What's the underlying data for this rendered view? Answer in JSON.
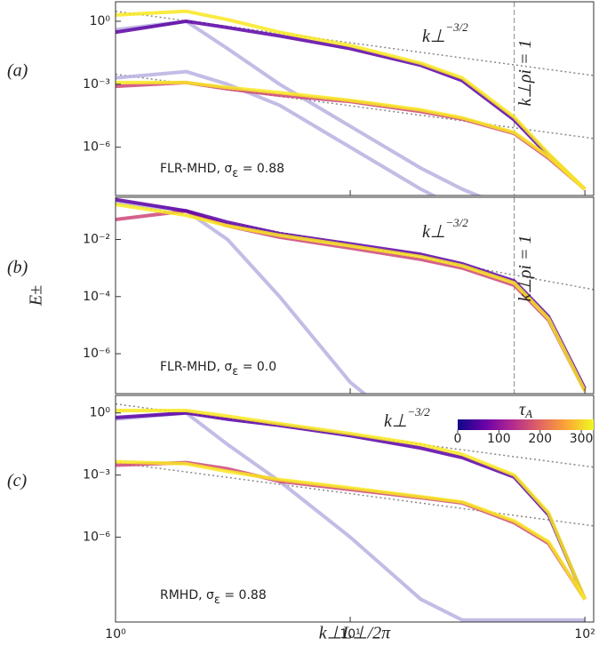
{
  "chart_data": [
    {
      "type": "line",
      "label": "(a)",
      "note": {
        "main": "FLR-MHD, σ",
        "sub": "ε",
        "tail": " = 0.88"
      },
      "slope": {
        "base": "k⊥",
        "sup": "−3/2"
      },
      "vline": {
        "value": 50,
        "label": "k⊥ρi = 1"
      },
      "ylim": [
        5e-09,
        8.5
      ],
      "yticks": [
        {
          "value": 1,
          "label": "10⁰"
        },
        {
          "value": 0.001,
          "label": "10⁻³"
        },
        {
          "value": 1e-06,
          "label": "10⁻⁶"
        }
      ],
      "x": [
        1,
        2,
        3,
        5,
        10,
        20,
        30,
        50,
        70,
        100
      ],
      "series": [
        {
          "color": "#b8b0e0",
          "values": [
            0.4,
            1,
            0.05,
            0.001,
            1e-05,
            1e-07,
            1e-08,
            1e-09,
            1e-09,
            1e-09
          ]
        },
        {
          "color": "#b8b0e0",
          "values": [
            0.002,
            0.004,
            0.001,
            0.0001,
            1e-06,
            1e-08,
            1e-09,
            1e-09,
            1e-09,
            1e-09
          ]
        },
        {
          "color": "#5c01a6",
          "values": [
            0.3,
            1,
            0.5,
            0.2,
            0.05,
            0.008,
            0.0015,
            2e-05,
            4e-07,
            1e-08
          ]
        },
        {
          "color": "#cc4778",
          "values": [
            0.0008,
            0.0012,
            0.0006,
            0.0003,
            0.00015,
            5e-05,
            2.2e-05,
            4.5e-06,
            3e-07,
            1e-08
          ]
        },
        {
          "color": "#f9e721",
          "values": [
            2,
            3,
            1.2,
            0.3,
            0.07,
            0.01,
            0.002,
            2.7e-05,
            5e-07,
            1e-08
          ]
        },
        {
          "color": "#f9e721",
          "values": [
            0.0012,
            0.0012,
            0.0007,
            0.0004,
            0.00017,
            6e-05,
            2.5e-05,
            5e-06,
            3.5e-07,
            1e-08
          ]
        }
      ],
      "refs": [
        {
          "x": [
            1,
            109
          ],
          "values": [
            3,
            0.0026
          ]
        },
        {
          "x": [
            1,
            109
          ],
          "values": [
            0.003,
            2.6e-06
          ]
        }
      ]
    },
    {
      "type": "line",
      "label": "(b)",
      "note": {
        "main": "FLR-MHD, σ",
        "sub": "ε",
        "tail": " = 0.0"
      },
      "slope": {
        "base": "k⊥",
        "sup": "−3/2"
      },
      "vline": {
        "value": 50,
        "label": "k⊥ρi = 1"
      },
      "ylabel": "E±",
      "ylim": [
        4e-08,
        0.3
      ],
      "yticks": [
        {
          "value": 0.01,
          "label": "10⁻²"
        },
        {
          "value": 0.0001,
          "label": "10⁻⁴"
        },
        {
          "value": 1e-06,
          "label": "10⁻⁶"
        }
      ],
      "x": [
        1,
        2,
        3,
        5,
        10,
        20,
        30,
        50,
        70,
        100
      ],
      "series": [
        {
          "color": "#b8b0e0",
          "values": [
            0.2,
            0.1,
            0.01,
            0.0001,
            1e-07,
            1e-09,
            1e-09,
            1e-09,
            1e-09,
            1e-09
          ]
        },
        {
          "color": "#cc4778",
          "values": [
            0.05,
            0.1,
            0.03,
            0.012,
            0.005,
            0.002,
            0.001,
            0.00025,
            1.5e-05,
            5e-08
          ]
        },
        {
          "color": "#5c01a6",
          "values": [
            0.25,
            0.1,
            0.04,
            0.016,
            0.007,
            0.003,
            0.0014,
            0.00035,
            2e-05,
            6e-08
          ]
        },
        {
          "color": "#f9e721",
          "values": [
            0.17,
            0.07,
            0.03,
            0.014,
            0.006,
            0.0025,
            0.0012,
            0.0003,
            1.7e-05,
            5e-08
          ]
        }
      ],
      "refs": [
        {
          "x": [
            1,
            109
          ],
          "values": [
            0.2,
            0.000176
          ]
        }
      ]
    },
    {
      "type": "line",
      "label": "(c)",
      "note": {
        "main": "RMHD, σ",
        "sub": "ε",
        "tail": " = 0.88"
      },
      "slope": {
        "base": "k⊥",
        "sup": "−3/2"
      },
      "xlabel": "k⊥L⊥/2π",
      "xlim": [
        1,
        109
      ],
      "xticks": [
        {
          "value": 1,
          "label": "10⁰"
        },
        {
          "value": 10,
          "label": "10¹"
        },
        {
          "value": 100,
          "label": "10²"
        }
      ],
      "ylim": [
        8e-11,
        7
      ],
      "yticks": [
        {
          "value": 1,
          "label": "10⁰"
        },
        {
          "value": 0.001,
          "label": "10⁻³"
        },
        {
          "value": 1e-06,
          "label": "10⁻⁶"
        }
      ],
      "x": [
        1,
        2,
        3,
        5,
        10,
        20,
        30,
        50,
        70,
        100
      ],
      "series": [
        {
          "color": "#b8b0e0",
          "values": [
            0.5,
            1,
            0.03,
            0.0005,
            1e-06,
            1e-09,
            1e-10,
            1e-10,
            1e-10,
            1e-10
          ]
        },
        {
          "color": "#5c01a6",
          "values": [
            0.6,
            1,
            0.5,
            0.25,
            0.08,
            0.02,
            0.007,
            0.0008,
            1.2e-05,
            1e-09
          ]
        },
        {
          "color": "#cc4778",
          "values": [
            0.003,
            0.004,
            0.002,
            0.0005,
            0.0002,
            8e-05,
            4.5e-05,
            5e-06,
            5e-07,
            1e-09
          ]
        },
        {
          "color": "#f9e721",
          "values": [
            1.3,
            1.3,
            0.7,
            0.3,
            0.1,
            0.03,
            0.01,
            0.001,
            1.5e-05,
            1e-09
          ]
        },
        {
          "color": "#f9e721",
          "values": [
            0.0044,
            0.0035,
            0.0015,
            0.0006,
            0.00024,
            9e-05,
            5e-05,
            6e-06,
            6e-07,
            1e-09
          ]
        }
      ],
      "refs": [
        {
          "x": [
            1,
            109
          ],
          "values": [
            2.7,
            0.0024
          ]
        },
        {
          "x": [
            1,
            109
          ],
          "values": [
            0.004,
            3.5e-06
          ]
        }
      ],
      "colorbar": {
        "label": "τ",
        "sub": "A",
        "lim": [
          0,
          330
        ],
        "ticks": [
          0,
          100,
          200,
          300
        ],
        "colors": [
          "#0d0887",
          "#6a00a8",
          "#b12a90",
          "#e16462",
          "#fca636",
          "#f0f921"
        ]
      }
    }
  ]
}
